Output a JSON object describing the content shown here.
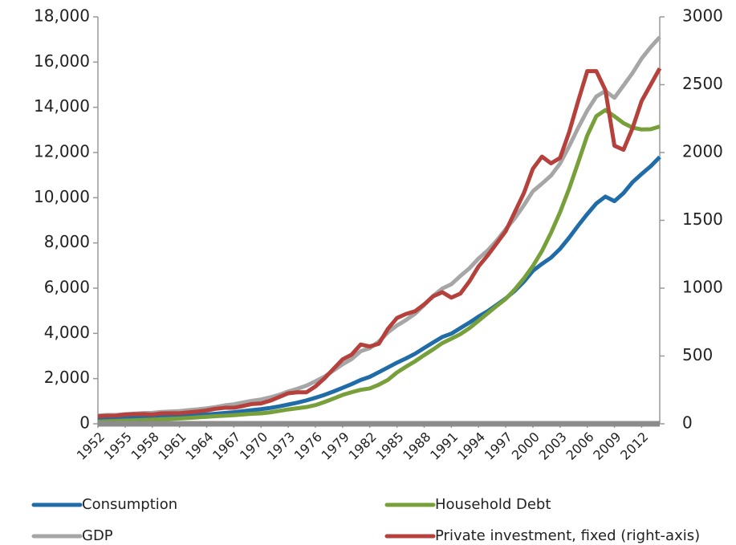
{
  "chart_data": {
    "type": "line",
    "x": [
      1952,
      1953,
      1954,
      1955,
      1956,
      1957,
      1958,
      1959,
      1960,
      1961,
      1962,
      1963,
      1964,
      1965,
      1966,
      1967,
      1968,
      1969,
      1970,
      1971,
      1972,
      1973,
      1974,
      1975,
      1976,
      1977,
      1978,
      1979,
      1980,
      1981,
      1982,
      1983,
      1984,
      1985,
      1986,
      1987,
      1988,
      1989,
      1990,
      1991,
      1992,
      1993,
      1994,
      1995,
      1996,
      1997,
      1998,
      1999,
      2000,
      2001,
      2002,
      2003,
      2004,
      2005,
      2006,
      2007,
      2008,
      2009,
      2010,
      2011,
      2012,
      2013,
      2014
    ],
    "series": [
      {
        "name": "Consumption",
        "color": "#1f6ca8",
        "values": [
          219,
          232,
          240,
          259,
          272,
          287,
          296,
          318,
          331,
          342,
          363,
          383,
          411,
          444,
          481,
          509,
          559,
          604,
          648,
          702,
          770,
          852,
          933,
          1034,
          1152,
          1279,
          1429,
          1592,
          1755,
          1939,
          2076,
          2284,
          2492,
          2704,
          2893,
          3100,
          3353,
          3598,
          3840,
          3987,
          4235,
          4477,
          4743,
          4976,
          5257,
          5547,
          5880,
          6283,
          6767,
          7073,
          7349,
          7740,
          8232,
          8769,
          9277,
          9746,
          10050,
          9847,
          10202,
          10689,
          11050,
          11392,
          11800
        ]
      },
      {
        "name": "Household Debt",
        "color": "#77a03a",
        "values": [
          95,
          110,
          122,
          142,
          157,
          170,
          183,
          203,
          217,
          234,
          256,
          283,
          311,
          339,
          361,
          383,
          414,
          443,
          460,
          507,
          570,
          636,
          687,
          740,
          827,
          963,
          1115,
          1277,
          1398,
          1502,
          1565,
          1730,
          1942,
          2270,
          2525,
          2765,
          3036,
          3293,
          3568,
          3765,
          3965,
          4232,
          4557,
          4883,
          5210,
          5523,
          5944,
          6425,
          6981,
          7641,
          8448,
          9360,
          10401,
          11563,
          12752,
          13610,
          13880,
          13600,
          13300,
          13100,
          13020,
          13030,
          13150
        ]
      },
      {
        "name": "GDP",
        "color": "#a6a6a6",
        "values": [
          368,
          389,
          391,
          426,
          450,
          474,
          482,
          522,
          543,
          563,
          605,
          638,
          686,
          743,
          815,
          862,
          943,
          1019,
          1075,
          1168,
          1282,
          1429,
          1549,
          1689,
          1878,
          2086,
          2357,
          2632,
          2863,
          3211,
          3345,
          3638,
          4041,
          4347,
          4590,
          4870,
          5253,
          5658,
          5980,
          6174,
          6539,
          6879,
          7309,
          7664,
          8100,
          8609,
          9089,
          9661,
          10285,
          10622,
          10978,
          11511,
          12275,
          13094,
          13856,
          14478,
          14719,
          14419,
          14964,
          15518,
          16155,
          16663,
          17100
        ]
      },
      {
        "name": "Private investment, fixed (right-axis)",
        "color": "#b5403c",
        "axis": "y2",
        "values": [
          55,
          59,
          60,
          68,
          71,
          72,
          68,
          77,
          78,
          78,
          84,
          90,
          99,
          111,
          118,
          118,
          131,
          146,
          150,
          170,
          197,
          225,
          232,
          232,
          275,
          335,
          405,
          475,
          510,
          585,
          570,
          590,
          700,
          780,
          810,
          830,
          880,
          940,
          970,
          930,
          960,
          1050,
          1160,
          1240,
          1330,
          1420,
          1560,
          1700,
          1880,
          1970,
          1920,
          1960,
          2150,
          2380,
          2600,
          2600,
          2460,
          2050,
          2020,
          2180,
          2380,
          2500,
          2620
        ]
      }
    ],
    "xlim": [
      1952,
      2014
    ],
    "xticks": [
      1952,
      1955,
      1958,
      1961,
      1964,
      1967,
      1970,
      1973,
      1976,
      1979,
      1982,
      1985,
      1988,
      1991,
      1994,
      1997,
      2000,
      2003,
      2006,
      2009,
      2012
    ],
    "ylim": [
      0,
      18000
    ],
    "yticks": [
      0,
      {
        "value": 2000,
        "label": "2,000"
      },
      {
        "value": 4000,
        "label": "4,000"
      },
      {
        "value": 6000,
        "label": "6,000"
      },
      {
        "value": 8000,
        "label": "8,000"
      },
      {
        "value": 10000,
        "label": "10,000"
      },
      {
        "value": 12000,
        "label": "12,000"
      },
      {
        "value": 14000,
        "label": "14,000"
      },
      {
        "value": 16000,
        "label": "16,000"
      },
      {
        "value": 18000,
        "label": "18,000"
      }
    ],
    "y2lim": [
      0,
      3000
    ],
    "y2ticks": [
      0,
      500,
      1000,
      1500,
      2000,
      2500,
      3000
    ],
    "grid": false,
    "legend": "bottom"
  }
}
